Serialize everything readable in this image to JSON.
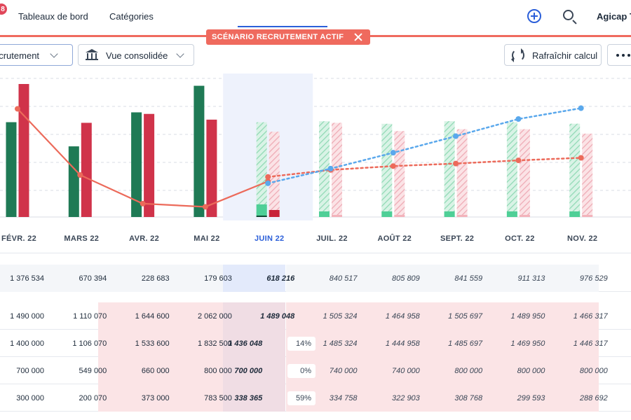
{
  "nav": {
    "badge": "8",
    "links": [
      "Tableaux de bord",
      "Catégories"
    ],
    "brand": "Agicap T"
  },
  "scenario": {
    "label": "SCÉNARIO RECRUTEMENT ACTIF"
  },
  "toolbar": {
    "scenario_select": "ecrutement",
    "view_select": "Vue consolidée",
    "refresh_label": "Rafraîchir calcul"
  },
  "colors": {
    "accent": "#2b5fd9",
    "scenario": "#ef6a5e",
    "income": "#1f7a55",
    "expense": "#d0334a",
    "balance_line": "#ec6a5a",
    "forecast_line": "#5aa8ec"
  },
  "chart_data": {
    "type": "bar",
    "categories": [
      "FÉVR. 22",
      "MARS 22",
      "AVR. 22",
      "MAI 22",
      "JUIN 22",
      "JUIL. 22",
      "AOÛT 22",
      "SEPT. 22",
      "OCT. 22",
      "NOV. 22"
    ],
    "selected_category": "JUIN 22",
    "forecast_from": "JUIN 22",
    "series": [
      {
        "kind": "bar",
        "values": [
          1490000,
          1110070,
          1644600,
          2062000,
          1489048,
          1505324,
          1464958,
          1505697,
          1489950,
          1466317
        ]
      },
      {
        "kind": "bar",
        "values": [
          2090000,
          1480000,
          1620000,
          1530000,
          1340000,
          1480000,
          1350000,
          1380000,
          1380000,
          1310000
        ]
      },
      {
        "kind": "line",
        "values": [
          1700000,
          660000,
          210000,
          160000,
          560000,
          null,
          null,
          null,
          null,
          null
        ]
      },
      {
        "kind": "line",
        "values": [
          null,
          null,
          null,
          null,
          630000,
          740000,
          800000,
          840000,
          890000,
          930000
        ]
      },
      {
        "kind": "line",
        "values": [
          null,
          null,
          null,
          null,
          530000,
          760000,
          1010000,
          1270000,
          1540000,
          1710000
        ]
      }
    ],
    "grid": true,
    "legend": "none"
  },
  "table": {
    "first_row": [
      "1 376 534",
      "670 394",
      "228 683",
      "179 603",
      "618 216",
      "840 517",
      "805 809",
      "841 559",
      "911 313",
      "976 529"
    ],
    "rows": [
      {
        "values": [
          "1 490 000",
          "1 110 070",
          "1 644 600",
          "2 062 000",
          "1 489 048",
          "1 505 324",
          "1 464 958",
          "1 505 697",
          "1 489 950",
          "1 466 317"
        ],
        "pct": ""
      },
      {
        "values": [
          "1 400 000",
          "1 106 070",
          "1 533 600",
          "1 832 500",
          "1 436 048",
          "1 485 324",
          "1 444 958",
          "1 485 697",
          "1 469 950",
          "1 446 317"
        ],
        "pct": "14%"
      },
      {
        "values": [
          "700 000",
          "549 000",
          "660 000",
          "800 000",
          "700 000",
          "740 000",
          "740 000",
          "800 000",
          "800 000",
          "800 000"
        ],
        "pct": "0%"
      },
      {
        "values": [
          "300 000",
          "200 070",
          "373 000",
          "783 500",
          "338 365",
          "334 758",
          "322 903",
          "308 768",
          "299 593",
          "288 692"
        ],
        "pct": "59%"
      }
    ]
  }
}
